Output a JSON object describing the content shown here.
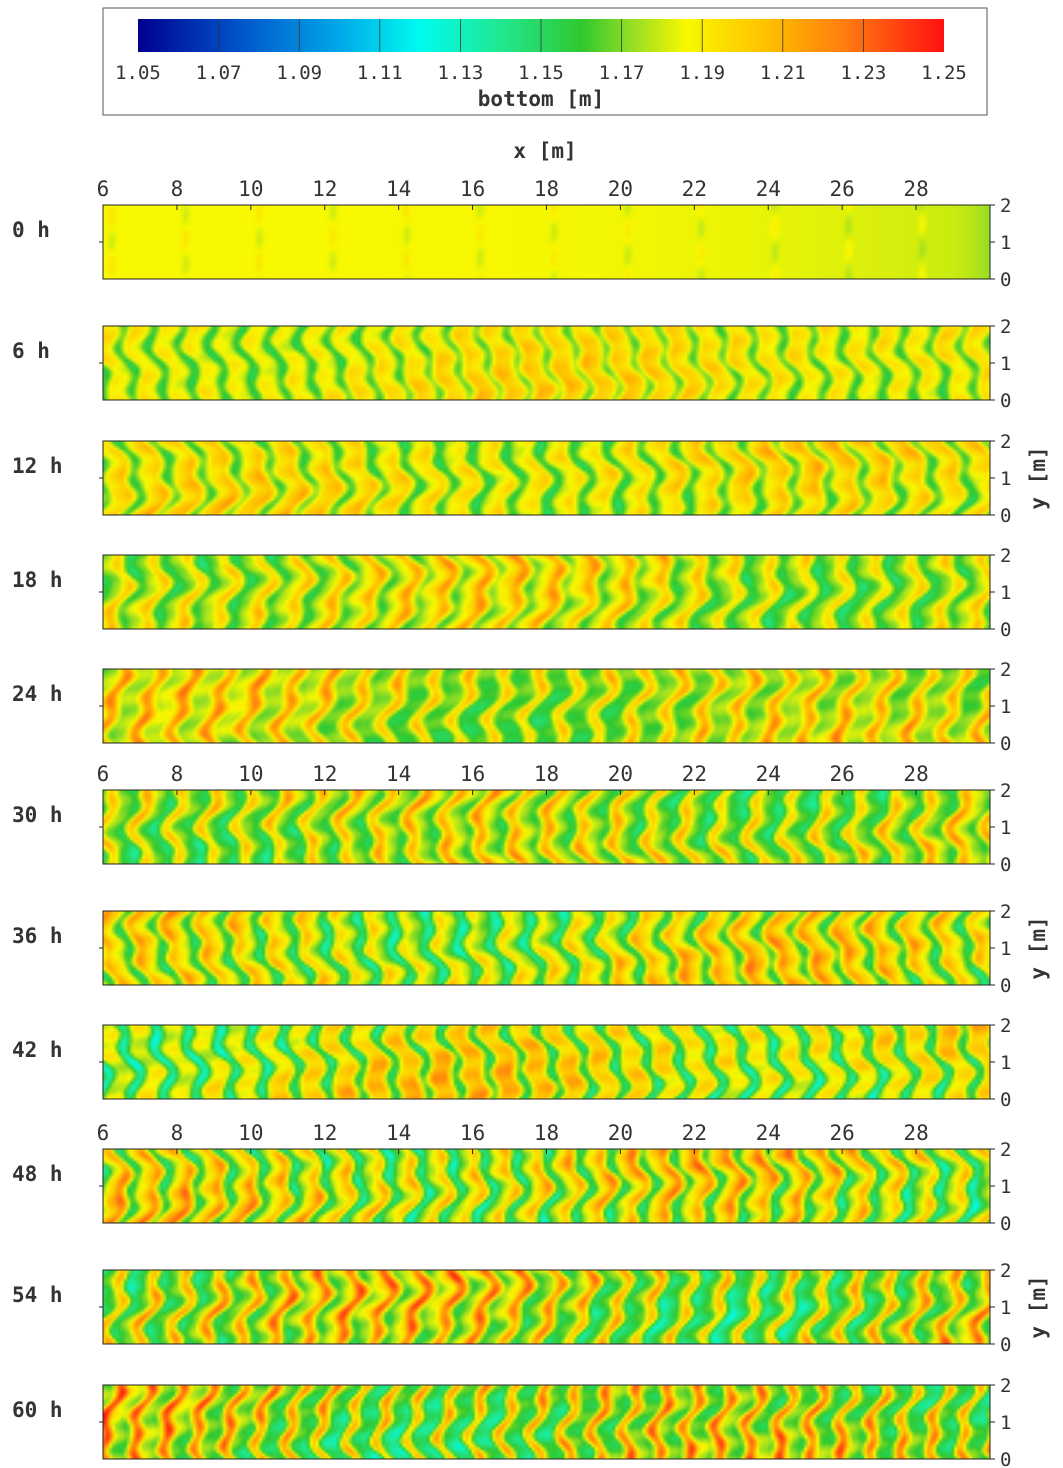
{
  "chart_data": {
    "type": "heatmap",
    "colorbar": {
      "label": "bottom [m]",
      "ticks": [
        "1.05",
        "1.07",
        "1.09",
        "1.11",
        "1.13",
        "1.15",
        "1.17",
        "1.19",
        "1.21",
        "1.23",
        "1.25"
      ],
      "range": [
        1.05,
        1.25
      ],
      "colormap": "jet"
    },
    "x_axis": {
      "label": "x [m]",
      "range": [
        6,
        30
      ],
      "ticks": [
        "6",
        "8",
        "10",
        "12",
        "14",
        "16",
        "18",
        "20",
        "22",
        "24",
        "26",
        "28"
      ]
    },
    "y_axis": {
      "label": "y [m]",
      "range": [
        0,
        2
      ],
      "ticks": [
        "0",
        "1",
        "2"
      ]
    },
    "panels": [
      {
        "time": "0 h",
        "mean": 1.19,
        "spread": 0.004
      },
      {
        "time": "6 h",
        "mean": 1.185,
        "spread": 0.025
      },
      {
        "time": "12 h",
        "mean": 1.183,
        "spread": 0.03
      },
      {
        "time": "18 h",
        "mean": 1.182,
        "spread": 0.032
      },
      {
        "time": "24 h",
        "mean": 1.182,
        "spread": 0.034
      },
      {
        "time": "30 h",
        "mean": 1.18,
        "spread": 0.038
      },
      {
        "time": "36 h",
        "mean": 1.18,
        "spread": 0.04
      },
      {
        "time": "42 h",
        "mean": 1.18,
        "spread": 0.042
      },
      {
        "time": "48 h",
        "mean": 1.18,
        "spread": 0.045
      },
      {
        "time": "54 h",
        "mean": 1.18,
        "spread": 0.047
      },
      {
        "time": "60 h",
        "mean": 1.18,
        "spread": 0.05
      }
    ]
  }
}
